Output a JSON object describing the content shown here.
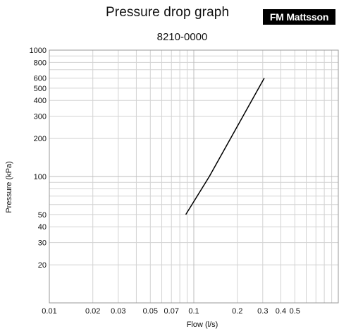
{
  "header": {
    "title": "Pressure drop graph",
    "brand": "FM Mattsson",
    "subtitle": "8210-0000"
  },
  "chart_data": {
    "type": "line",
    "x_scale": "log",
    "y_scale": "log",
    "xlim": [
      0.01,
      1.0
    ],
    "ylim": [
      10,
      1000
    ],
    "xlabel": "Flow (l/s)",
    "ylabel": "Pressure (kPa)",
    "x_ticks": [
      0.01,
      0.02,
      0.03,
      0.05,
      0.07,
      0.1,
      0.2,
      0.3,
      0.4,
      0.5
    ],
    "x_tick_labels": [
      "0.01",
      "0.02",
      "0.03",
      "0.05",
      "0.07",
      "0.1",
      "0.2",
      "0.3",
      "0.4",
      "0.5"
    ],
    "y_ticks": [
      20,
      30,
      40,
      50,
      100,
      200,
      300,
      400,
      500,
      600,
      800,
      1000
    ],
    "y_tick_labels": [
      "20",
      "30",
      "40",
      "50",
      "100",
      "200",
      "300",
      "400",
      "500",
      "600",
      "800",
      "1000"
    ],
    "grid": true,
    "series": [
      {
        "x": [
          0.088,
          0.128,
          0.307
        ],
        "y": [
          50,
          100,
          600
        ],
        "color": "#000000"
      }
    ]
  }
}
